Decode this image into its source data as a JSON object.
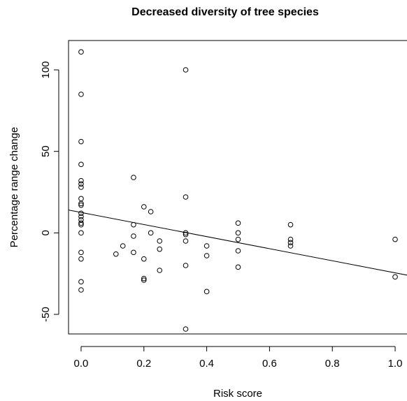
{
  "chart_data": {
    "type": "scatter",
    "title": "Decreased diversity of tree species",
    "xlabel": "Risk score",
    "ylabel": "Percentage range change",
    "xlim": [
      -0.04,
      1.04
    ],
    "ylim": [
      -62,
      118
    ],
    "x_ticks": [
      "0.0",
      "0.2",
      "0.4",
      "0.6",
      "0.8",
      "1.0"
    ],
    "y_ticks": [
      "-50",
      "0",
      "50",
      "100"
    ],
    "grid": false,
    "legend": "none",
    "points": [
      {
        "x": 0.0,
        "y": 111
      },
      {
        "x": 0.0,
        "y": 85
      },
      {
        "x": 0.0,
        "y": 56
      },
      {
        "x": 0.0,
        "y": 42
      },
      {
        "x": 0.0,
        "y": 32
      },
      {
        "x": 0.0,
        "y": 30
      },
      {
        "x": 0.0,
        "y": 28
      },
      {
        "x": 0.0,
        "y": 21
      },
      {
        "x": 0.0,
        "y": 18
      },
      {
        "x": 0.0,
        "y": 17
      },
      {
        "x": 0.0,
        "y": 12
      },
      {
        "x": 0.0,
        "y": 10
      },
      {
        "x": 0.0,
        "y": 8
      },
      {
        "x": 0.0,
        "y": 6
      },
      {
        "x": 0.0,
        "y": 5
      },
      {
        "x": 0.0,
        "y": 0
      },
      {
        "x": 0.0,
        "y": -12
      },
      {
        "x": 0.0,
        "y": -16
      },
      {
        "x": 0.0,
        "y": -30
      },
      {
        "x": 0.0,
        "y": -35
      },
      {
        "x": 0.111,
        "y": -13
      },
      {
        "x": 0.133,
        "y": -8
      },
      {
        "x": 0.167,
        "y": 34
      },
      {
        "x": 0.167,
        "y": 5
      },
      {
        "x": 0.167,
        "y": -2
      },
      {
        "x": 0.167,
        "y": -12
      },
      {
        "x": 0.2,
        "y": 16
      },
      {
        "x": 0.2,
        "y": -16
      },
      {
        "x": 0.2,
        "y": -28
      },
      {
        "x": 0.2,
        "y": -29
      },
      {
        "x": 0.222,
        "y": 13
      },
      {
        "x": 0.222,
        "y": 0
      },
      {
        "x": 0.25,
        "y": -5
      },
      {
        "x": 0.25,
        "y": -10
      },
      {
        "x": 0.25,
        "y": -23
      },
      {
        "x": 0.333,
        "y": 100
      },
      {
        "x": 0.333,
        "y": 22
      },
      {
        "x": 0.333,
        "y": 0
      },
      {
        "x": 0.333,
        "y": -1
      },
      {
        "x": 0.333,
        "y": -5
      },
      {
        "x": 0.333,
        "y": -20
      },
      {
        "x": 0.333,
        "y": -59
      },
      {
        "x": 0.4,
        "y": -8
      },
      {
        "x": 0.4,
        "y": -14
      },
      {
        "x": 0.4,
        "y": -36
      },
      {
        "x": 0.5,
        "y": 6
      },
      {
        "x": 0.5,
        "y": 0
      },
      {
        "x": 0.5,
        "y": -4
      },
      {
        "x": 0.5,
        "y": -11
      },
      {
        "x": 0.5,
        "y": -21
      },
      {
        "x": 0.667,
        "y": 5
      },
      {
        "x": 0.667,
        "y": -4
      },
      {
        "x": 0.667,
        "y": -6
      },
      {
        "x": 0.667,
        "y": -8
      },
      {
        "x": 1.0,
        "y": -4
      },
      {
        "x": 1.0,
        "y": -27
      }
    ],
    "fit_line": {
      "x": [
        -0.04,
        1.04
      ],
      "y": [
        14,
        -26
      ]
    }
  }
}
